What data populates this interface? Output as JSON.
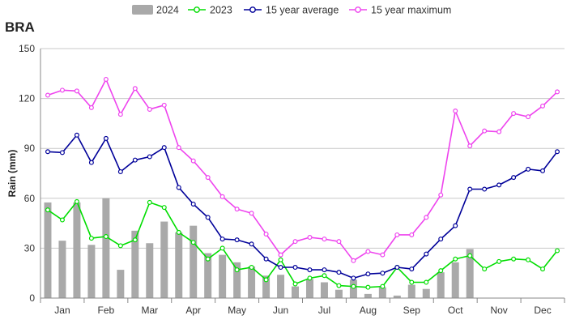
{
  "chart_data": {
    "type": "bar",
    "title": "BRA",
    "xlabel": "",
    "ylabel": "Rain (mm)",
    "ylim": [
      0,
      150
    ],
    "yticks": [
      0,
      30,
      60,
      90,
      120,
      150
    ],
    "months": [
      "Jan",
      "Feb",
      "Mar",
      "Apr",
      "May",
      "Jun",
      "Jul",
      "Aug",
      "Sep",
      "Oct",
      "Nov",
      "Dec"
    ],
    "grid": true,
    "legend_position": "top",
    "series": [
      {
        "name": "2024",
        "kind": "bar",
        "color": "#a9a9a9",
        "values": [
          57.5,
          34.5,
          57.5,
          32.0,
          60.0,
          17.0,
          40.5,
          33.0,
          46.0,
          39.5,
          43.5,
          27.0,
          26.0,
          21.5,
          19.0,
          13.5,
          14.0,
          7.0,
          11.5,
          9.5,
          5.0,
          11.0,
          2.5,
          6.5,
          1.5,
          8.0,
          5.5,
          15.5,
          21.5,
          29.5
        ]
      },
      {
        "name": "2023",
        "kind": "line",
        "color": "#00dd00",
        "values": [
          53.0,
          47.0,
          58.0,
          36.0,
          37.0,
          31.5,
          35.0,
          57.5,
          54.5,
          39.5,
          33.5,
          23.5,
          30.0,
          17.0,
          18.5,
          11.0,
          23.0,
          8.5,
          12.0,
          13.5,
          7.5,
          7.0,
          6.5,
          7.0,
          18.5,
          9.5,
          9.5,
          16.5,
          23.5,
          25.5,
          17.5,
          22.0,
          23.5,
          23.0,
          17.5,
          28.5
        ]
      },
      {
        "name": "15 year average",
        "kind": "line",
        "color": "#000099",
        "values": [
          88.0,
          87.5,
          98.0,
          81.5,
          96.0,
          76.0,
          83.0,
          85.0,
          90.5,
          66.5,
          56.5,
          48.5,
          35.5,
          35.0,
          32.5,
          23.5,
          18.5,
          18.5,
          17.0,
          17.0,
          15.5,
          12.0,
          14.5,
          15.0,
          18.5,
          17.5,
          26.5,
          35.5,
          43.5,
          65.5,
          65.5,
          68.0,
          72.5,
          77.5,
          76.5,
          88.0
        ]
      },
      {
        "name": "15 year maximum",
        "kind": "line",
        "color": "#ee44ee",
        "values": [
          122.0,
          125.0,
          124.5,
          114.5,
          131.5,
          110.5,
          126.0,
          113.5,
          116.0,
          90.5,
          82.5,
          72.5,
          61.0,
          53.5,
          51.0,
          38.5,
          26.0,
          34.0,
          36.5,
          35.5,
          34.0,
          22.5,
          28.0,
          26.0,
          38.0,
          38.0,
          48.5,
          62.0,
          112.5,
          91.5,
          100.5,
          100.0,
          111.0,
          109.0,
          115.5,
          124.0
        ]
      }
    ]
  }
}
